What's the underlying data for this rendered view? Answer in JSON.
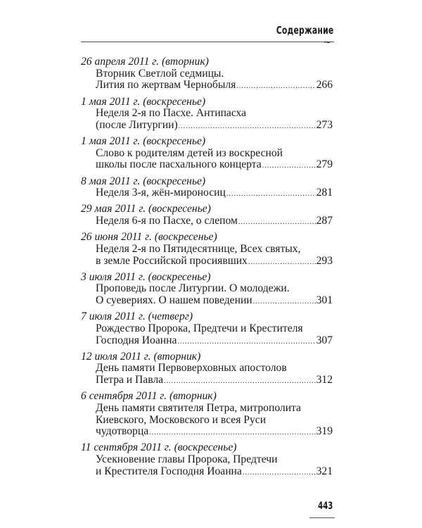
{
  "header": {
    "title": "Содержание"
  },
  "toc": [
    {
      "date": "26 апреля 2011 г. (вторник)",
      "lines": [
        "Вторник Светлой седмицы.",
        "Лития по жертвам Чернобыля"
      ],
      "page": "266"
    },
    {
      "date": "1 мая 2011 г. (воскресенье)",
      "lines": [
        "Неделя 2-я по Пасхе. Антипасха",
        "(после Литургии)"
      ],
      "page": "273"
    },
    {
      "date": "1 мая 2011 г. (воскресенье)",
      "lines": [
        "Слово к родителям детей из воскресной",
        "школы после пасхального концерта"
      ],
      "page": "279"
    },
    {
      "date": "8 мая 2011 г. (воскресенье)",
      "lines": [
        "Неделя 3-я, жён-мироносиц"
      ],
      "page": "281"
    },
    {
      "date": "29 мая 2011 г. (воскресенье)",
      "lines": [
        "Неделя 6-я по Пасхе, о слепом"
      ],
      "page": "287"
    },
    {
      "date": "26 июня 2011 г. (воскресенье)",
      "lines": [
        "Неделя 2-я по Пятидесятнице, Всех святых,",
        "в земле Российской просиявших"
      ],
      "page": "293"
    },
    {
      "date": "3 июля 2011 г. (воскресенье)",
      "lines": [
        "Проповедь после Литургии. О молодежи.",
        "О суевериях. О нашем поведении"
      ],
      "page": "301"
    },
    {
      "date": "7 июля 2011 г. (четверг)",
      "lines": [
        "Рождество Пророка, Предтечи и Крестителя",
        "Господня Иоанна"
      ],
      "page": "307"
    },
    {
      "date": "12 июля 2011 г. (вторник)",
      "lines": [
        "День памяти Первоверховных апостолов",
        "Петра и Павла"
      ],
      "page": "312"
    },
    {
      "date": "6 сентября 2011 г. (вторник)",
      "lines": [
        "День памяти святителя Петра, митрополита",
        "Киевского, Московского и всея Руси",
        "чудотворца"
      ],
      "page": "319"
    },
    {
      "date": "11 сентября 2011 г. (воскресенье)",
      "lines": [
        "Усекновение главы Пророка, Предтечи",
        "и Крестителя Господня Иоанна"
      ],
      "page": "321"
    }
  ],
  "footer": {
    "page_number": "443"
  }
}
